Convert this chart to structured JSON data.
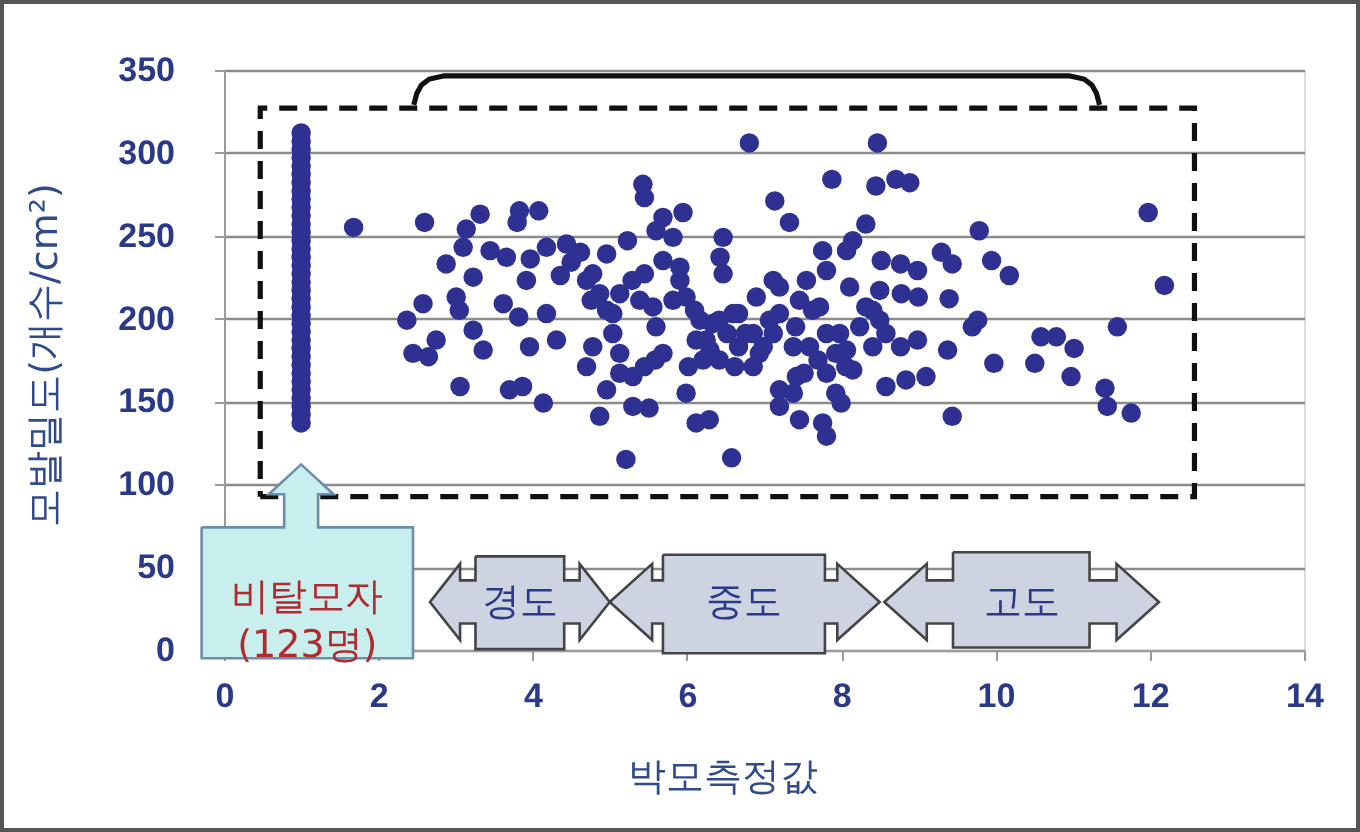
{
  "chart_data": {
    "type": "scatter",
    "xlabel": "박모측정값",
    "ylabel": "모발밀도(개수/cm²)",
    "series": [
      {
        "color": "#2e3192",
        "x": [
          1,
          1,
          1,
          1,
          1,
          1,
          1,
          1,
          1,
          1,
          1,
          1,
          1,
          1,
          1,
          1,
          1,
          1,
          1,
          1,
          1,
          1,
          1,
          1,
          1,
          1,
          1,
          1,
          1,
          1,
          1,
          1,
          1,
          1,
          1,
          1,
          1.68,
          2.6,
          3.32,
          3.14,
          3.83,
          4.08,
          3.8,
          2.88,
          3.1,
          3.45,
          3.66,
          3.23,
          2.58,
          2.37,
          3.01,
          3.05,
          3.62,
          3.82,
          3.23,
          3.36,
          2.75,
          2.45,
          2.65,
          3.06,
          3.7,
          3.87,
          4.14,
          3.96,
          4.18,
          4.31,
          3.92,
          3.97,
          4.18,
          4.44,
          4.5,
          4.36,
          4.7,
          4.7,
          4.87,
          6.81,
          8.47,
          5.43,
          5.45,
          7.88,
          8.45,
          8.71,
          8.89,
          7.14,
          7.33,
          5.69,
          5.95,
          5.6,
          5.82,
          5.23,
          4.96,
          4.78,
          4.62,
          6.47,
          6.43,
          6.47,
          5.91,
          5.45,
          5.69,
          5.99,
          6.1,
          5.13,
          4.96,
          4.76,
          5.29,
          5.6,
          5.04,
          4.78,
          5.13,
          5.45,
          5.59,
          4.96,
          5.3,
          5.51,
          5.21,
          5.99,
          6.12,
          6.29,
          6.02,
          6.25,
          6.33,
          6.52,
          6.42,
          6.67,
          6.9,
          6.58,
          6.62,
          7.12,
          7.2,
          7.12,
          6.94,
          7.41,
          7.38,
          7.59,
          7.63,
          7.55,
          7.81,
          7.76,
          8.07,
          8.32,
          8.15,
          8.52,
          8.77,
          8.99,
          9.3,
          9.44,
          8.78,
          9.0,
          9.4,
          8.11,
          8.5,
          8.41,
          8.24,
          8.41,
          7.98,
          7.93,
          8.06,
          7.7,
          7.52,
          7.81,
          7.42,
          7.2,
          7.38,
          7.2,
          7.46,
          7.76,
          7.81,
          7.93,
          8.0,
          8.15,
          8.58,
          8.84,
          9.1,
          8.77,
          8.99,
          9.38,
          9.44,
          6.67,
          6.76,
          11.98,
          12.19,
          9.79,
          9.95,
          10.18,
          9.77,
          9.7,
          9.98,
          10.59,
          10.79,
          11.02,
          10.51,
          10.98,
          11.58,
          11.42,
          11.45,
          11.76,
          5.82,
          6.17,
          6.3,
          6.12,
          6.21,
          6.6,
          6.86,
          6.99,
          5.39,
          5.56,
          7.2,
          7.46,
          7.72,
          8.32,
          8.5,
          8.58,
          5.13,
          5.3,
          5.69,
          6.86,
          7.81,
          8.07,
          7.07,
          5.91,
          6.42,
          4.87,
          5.04
        ],
        "values": [
          137,
          142,
          147,
          152,
          157,
          162,
          167,
          172,
          177,
          182,
          187,
          192,
          197,
          202,
          207,
          212,
          217,
          222,
          227,
          232,
          237,
          242,
          247,
          252,
          257,
          262,
          267,
          272,
          277,
          282,
          287,
          292,
          297,
          302,
          307,
          312,
          255,
          258,
          263,
          254,
          265,
          265,
          258,
          233,
          243,
          241,
          237,
          225,
          209,
          199,
          213,
          205,
          209,
          201,
          193,
          181,
          187,
          179,
          177,
          159,
          157,
          159,
          149,
          183,
          203,
          187,
          223,
          236,
          243,
          245,
          234,
          226,
          223,
          171,
          141,
          306,
          306,
          281,
          273,
          284,
          280,
          284,
          282,
          271,
          258,
          261,
          264,
          253,
          249,
          247,
          239,
          227,
          240,
          249,
          237,
          227,
          231,
          227,
          235,
          213,
          205,
          215,
          205,
          211,
          223,
          195,
          191,
          183,
          167,
          171,
          175,
          157,
          147,
          146,
          115,
          155,
          137,
          139,
          171,
          187,
          197,
          191,
          175,
          203,
          213,
          116,
          171,
          223,
          203,
          191,
          179,
          195,
          183,
          183,
          205,
          223,
          229,
          241,
          241,
          257,
          247,
          235,
          233,
          229,
          240,
          233,
          215,
          213,
          212,
          219,
          217,
          205,
          195,
          183,
          191,
          179,
          171,
          175,
          167,
          167,
          165,
          157,
          155,
          147,
          139,
          137,
          129,
          155,
          149,
          169,
          159,
          163,
          165,
          183,
          187,
          181,
          141,
          183,
          191,
          264,
          220,
          253,
          235,
          226,
          199,
          195,
          173,
          189,
          189,
          182,
          173,
          165,
          195,
          158,
          147,
          143,
          211,
          199,
          181,
          187,
          175,
          203,
          191,
          183,
          211,
          207,
          219,
          211,
          207,
          207,
          199,
          191,
          179,
          165,
          179,
          171,
          191,
          181,
          199,
          223,
          199,
          215,
          203
        ]
      }
    ],
    "marker": "circle",
    "xlim": [
      0,
      14
    ],
    "xticks": [
      0,
      2,
      4,
      6,
      8,
      10,
      12,
      14
    ],
    "ylim": [
      0,
      350
    ],
    "yticks": [
      0,
      50,
      100,
      150,
      200,
      250,
      300,
      350
    ],
    "grid": "y",
    "annotations": [
      "비탈모자\n(123명)",
      "경도",
      "중도",
      "고도"
    ]
  }
}
